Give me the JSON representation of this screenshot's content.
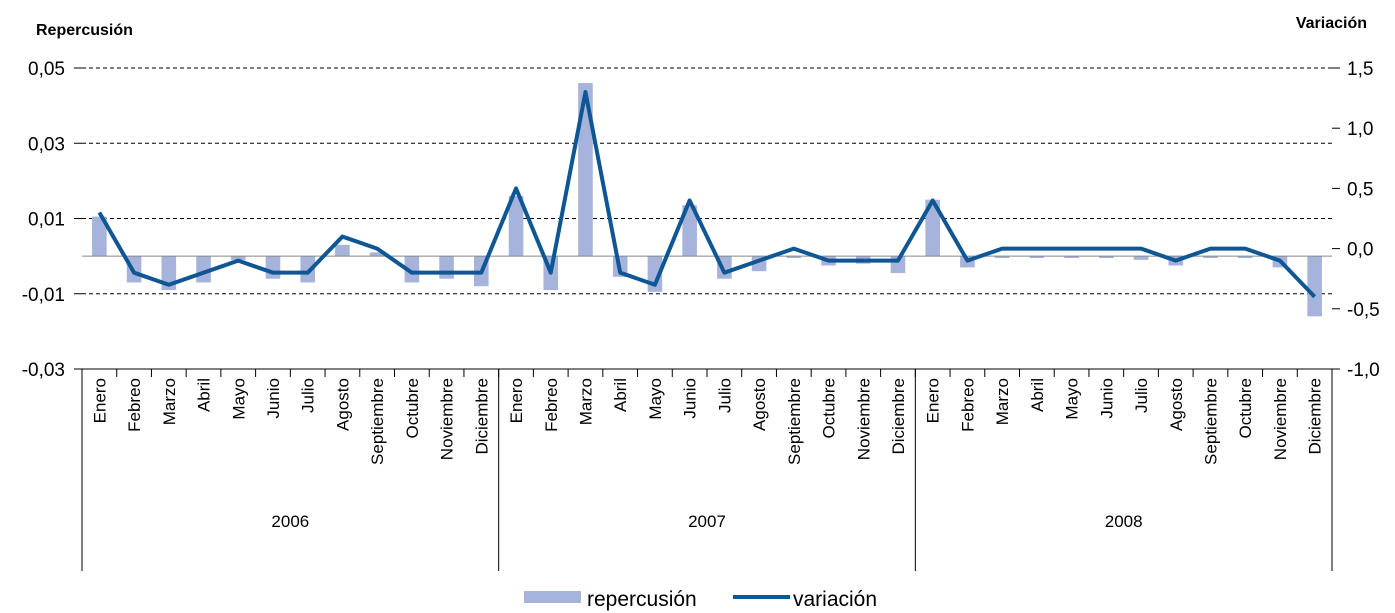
{
  "chart_data": {
    "type": "bar+line",
    "title": "",
    "y_left_label": "Repercusión",
    "y_right_label": "Variación",
    "y_left_lim": [
      -0.03,
      0.05
    ],
    "y_left_ticks": [
      "0,05",
      "0,03",
      "0,01",
      "-0,01",
      "-0,03"
    ],
    "y_left_tick_values": [
      0.05,
      0.03,
      0.01,
      -0.01,
      -0.03
    ],
    "y_right_lim": [
      -1.0,
      1.5
    ],
    "y_right_ticks": [
      "1,5",
      "1,0",
      "0,5",
      "0,0",
      "-0,5",
      "-1,0"
    ],
    "y_right_tick_values": [
      1.5,
      1.0,
      0.5,
      0.0,
      -0.5,
      -1.0
    ],
    "grid": "dashed horizontal",
    "legend_position": "bottom-center",
    "years": [
      "2006",
      "2007",
      "2008"
    ],
    "months": [
      "Enero",
      "Febreo",
      "Marzo",
      "Abril",
      "Mayo",
      "Junio",
      "Julio",
      "Agosto",
      "Septiembre",
      "Octubre",
      "Noviembre",
      "Diciembre"
    ],
    "categories": [
      "Enero",
      "Febreo",
      "Marzo",
      "Abril",
      "Mayo",
      "Junio",
      "Julio",
      "Agosto",
      "Septiembre",
      "Octubre",
      "Noviembre",
      "Diciembre",
      "Enero",
      "Febreo",
      "Marzo",
      "Abril",
      "Mayo",
      "Junio",
      "Julio",
      "Agosto",
      "Septiembre",
      "Octubre",
      "Noviembre",
      "Diciembre",
      "Enero",
      "Febreo",
      "Marzo",
      "Abril",
      "Mayo",
      "Junio",
      "Julio",
      "Agosto",
      "Septiembre",
      "Octubre",
      "Noviembre",
      "Diciembre"
    ],
    "series": [
      {
        "name": "repercusión",
        "type": "bar",
        "axis": "left",
        "color": "#A6B3DA",
        "values": [
          0.0105,
          -0.007,
          -0.009,
          -0.007,
          -0.001,
          -0.006,
          -0.007,
          0.003,
          0.001,
          -0.007,
          -0.006,
          -0.008,
          0.016,
          -0.009,
          0.046,
          -0.0055,
          -0.0095,
          0.0135,
          -0.006,
          -0.004,
          -0.0005,
          -0.0025,
          -0.002,
          -0.0045,
          0.015,
          -0.003,
          -0.0005,
          -0.0005,
          -0.0005,
          -0.0005,
          -0.001,
          -0.0025,
          -0.0005,
          -0.0005,
          -0.003,
          -0.016
        ]
      },
      {
        "name": "variación",
        "type": "line",
        "axis": "right",
        "color": "#0E5694",
        "values": [
          0.3,
          -0.2,
          -0.3,
          -0.2,
          -0.1,
          -0.2,
          -0.2,
          0.1,
          0.0,
          -0.2,
          -0.2,
          -0.2,
          0.5,
          -0.2,
          1.3,
          -0.2,
          -0.3,
          0.4,
          -0.2,
          -0.1,
          0.0,
          -0.1,
          -0.1,
          -0.1,
          0.4,
          -0.1,
          0.0,
          0.0,
          0.0,
          0.0,
          0.0,
          -0.1,
          0.0,
          0.0,
          -0.1,
          -0.4
        ]
      }
    ]
  }
}
